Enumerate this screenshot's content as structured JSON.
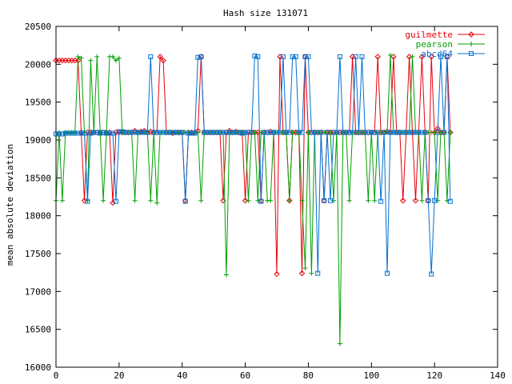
{
  "chart_data": {
    "type": "line",
    "title": "Hash size 131071",
    "xlabel": "",
    "ylabel": "mean absolute deviation",
    "xlim": [
      0,
      140
    ],
    "ylim": [
      16000,
      20500
    ],
    "xticks": [
      0,
      20,
      40,
      60,
      80,
      100,
      120,
      140
    ],
    "yticks": [
      16000,
      16500,
      17000,
      17500,
      18000,
      18500,
      19000,
      19500,
      20000,
      20500
    ],
    "grid": false,
    "legend_position": "top-right",
    "series": [
      {
        "name": "guilmette",
        "color": "#e8000b",
        "marker": "diamond",
        "x": [
          0,
          1,
          2,
          3,
          4,
          5,
          6,
          7,
          8,
          9,
          10,
          11,
          12,
          13,
          14,
          15,
          16,
          17,
          18,
          19,
          20,
          21,
          22,
          23,
          24,
          25,
          26,
          27,
          28,
          29,
          30,
          31,
          32,
          33,
          34,
          35,
          36,
          37,
          38,
          39,
          40,
          41,
          42,
          43,
          44,
          45,
          46,
          47,
          48,
          49,
          50,
          51,
          52,
          53,
          54,
          55,
          56,
          57,
          58,
          59,
          60,
          61,
          62,
          63,
          64,
          65,
          66,
          67,
          68,
          69,
          70,
          71,
          72,
          73,
          74,
          75,
          76,
          77,
          78,
          79,
          80,
          81,
          82,
          83,
          84,
          85,
          86,
          87,
          88,
          89,
          90,
          91,
          92,
          93,
          94,
          95,
          96,
          97,
          98,
          99,
          100,
          101,
          102,
          103,
          104,
          105,
          106,
          107,
          108,
          109,
          110,
          111,
          112,
          113,
          114,
          115,
          116,
          117,
          118,
          119,
          120,
          121,
          122,
          123,
          124,
          125
        ],
        "y": [
          20050,
          20050,
          20050,
          20050,
          20050,
          20050,
          20050,
          20050,
          19100,
          18200,
          19100,
          19100,
          19100,
          19100,
          19100,
          19100,
          19100,
          19100,
          18170,
          19100,
          19100,
          19100,
          19100,
          19100,
          19100,
          19120,
          19100,
          19110,
          19120,
          19100,
          19110,
          19100,
          19100,
          20100,
          20050,
          19100,
          19100,
          19090,
          19100,
          19100,
          19100,
          18200,
          19100,
          19100,
          19100,
          19120,
          20100,
          19100,
          19100,
          19100,
          19100,
          19100,
          19100,
          18200,
          19100,
          19120,
          19100,
          19110,
          19100,
          19100,
          18200,
          19100,
          19100,
          19100,
          19100,
          18200,
          19100,
          19100,
          19110,
          19100,
          17230,
          20100,
          19100,
          19100,
          18200,
          19100,
          19100,
          19100,
          17240,
          20100,
          19100,
          19100,
          19100,
          19100,
          19100,
          18200,
          19100,
          19100,
          19100,
          19100,
          19100,
          19100,
          19100,
          19100,
          20100,
          19100,
          19100,
          19100,
          19100,
          19100,
          19100,
          19100,
          20100,
          19100,
          19100,
          19110,
          19100,
          20100,
          19100,
          19100,
          18200,
          19100,
          20100,
          19100,
          18200,
          19100,
          20100,
          19100,
          18200,
          20100,
          19100,
          19150,
          19100,
          19100,
          20100,
          19100
        ]
      },
      {
        "name": "pearson",
        "color": "#00a000",
        "marker": "plus",
        "x": [
          0,
          1,
          2,
          3,
          4,
          5,
          6,
          7,
          8,
          9,
          10,
          11,
          12,
          13,
          14,
          15,
          16,
          17,
          18,
          19,
          20,
          21,
          22,
          23,
          24,
          25,
          26,
          27,
          28,
          29,
          30,
          31,
          32,
          33,
          34,
          35,
          36,
          37,
          38,
          39,
          40,
          41,
          42,
          43,
          44,
          45,
          46,
          47,
          48,
          49,
          50,
          51,
          52,
          53,
          54,
          55,
          56,
          57,
          58,
          59,
          60,
          61,
          62,
          63,
          64,
          65,
          66,
          67,
          68,
          69,
          70,
          71,
          72,
          73,
          74,
          75,
          76,
          77,
          78,
          79,
          80,
          81,
          82,
          83,
          84,
          85,
          86,
          87,
          88,
          89,
          90,
          91,
          92,
          93,
          94,
          95,
          96,
          97,
          98,
          99,
          100,
          101,
          102,
          103,
          104,
          105,
          106,
          107,
          108,
          109,
          110,
          111,
          112,
          113,
          114,
          115,
          116,
          117,
          118,
          119,
          120,
          121,
          122,
          123,
          124,
          125
        ],
        "y": [
          18200,
          19100,
          18200,
          19100,
          19100,
          19100,
          19100,
          20100,
          20080,
          19100,
          18200,
          20050,
          19100,
          20100,
          19100,
          18200,
          19100,
          20100,
          20100,
          20050,
          20080,
          19100,
          19100,
          19100,
          19100,
          18200,
          19100,
          19100,
          19100,
          19100,
          18200,
          19100,
          18170,
          19100,
          19100,
          19100,
          19100,
          19100,
          19100,
          19090,
          19100,
          19100,
          19100,
          19100,
          19100,
          19100,
          18200,
          19100,
          19100,
          19100,
          19100,
          19100,
          19100,
          19100,
          17220,
          19100,
          19100,
          19100,
          19100,
          19100,
          19100,
          18200,
          19100,
          19100,
          18200,
          19100,
          19100,
          18200,
          18200,
          19100,
          19100,
          19100,
          19100,
          19100,
          18200,
          19100,
          19100,
          19100,
          18200,
          17310,
          19100,
          17240,
          19100,
          19100,
          19100,
          19100,
          19100,
          19100,
          18200,
          19100,
          16310,
          19100,
          19100,
          18200,
          19100,
          19100,
          19100,
          19100,
          19100,
          18200,
          19100,
          18200,
          19100,
          19100,
          19100,
          19100,
          20120,
          19100,
          19100,
          19100,
          19100,
          19100,
          19100,
          20100,
          19100,
          19100,
          18200,
          19100,
          19100,
          19100,
          19100,
          18200,
          19100,
          19100,
          18200,
          19100
        ]
      },
      {
        "name": "abcd64",
        "color": "#0070d0",
        "marker": "square",
        "x": [
          0,
          1,
          2,
          3,
          4,
          5,
          6,
          7,
          8,
          9,
          10,
          11,
          12,
          13,
          14,
          15,
          16,
          17,
          18,
          19,
          20,
          21,
          22,
          23,
          24,
          25,
          26,
          27,
          28,
          29,
          30,
          31,
          32,
          33,
          34,
          35,
          36,
          37,
          38,
          39,
          40,
          41,
          42,
          43,
          44,
          45,
          46,
          47,
          48,
          49,
          50,
          51,
          52,
          53,
          54,
          55,
          56,
          57,
          58,
          59,
          60,
          61,
          62,
          63,
          64,
          65,
          66,
          67,
          68,
          69,
          70,
          71,
          72,
          73,
          74,
          75,
          76,
          77,
          78,
          79,
          80,
          81,
          82,
          83,
          84,
          85,
          86,
          87,
          88,
          89,
          90,
          91,
          92,
          93,
          94,
          95,
          96,
          97,
          98,
          99,
          100,
          101,
          102,
          103,
          104,
          105,
          106,
          107,
          108,
          109,
          110,
          111,
          112,
          113,
          114,
          115,
          116,
          117,
          118,
          119,
          120,
          121,
          122,
          123,
          124,
          125
        ],
        "y": [
          19080,
          19080,
          19080,
          19090,
          19090,
          19090,
          19090,
          19090,
          19090,
          19090,
          18190,
          19090,
          19100,
          19100,
          19090,
          19100,
          19090,
          19090,
          19090,
          18190,
          19110,
          19110,
          19100,
          19100,
          19100,
          19100,
          19100,
          19100,
          19100,
          19100,
          20100,
          19100,
          19100,
          19100,
          19100,
          19100,
          19100,
          19100,
          19100,
          19100,
          19100,
          18190,
          19090,
          19090,
          19090,
          20090,
          20100,
          19100,
          19100,
          19100,
          19100,
          19100,
          19100,
          19100,
          19100,
          19100,
          19100,
          19100,
          19100,
          19090,
          19100,
          19100,
          19100,
          20110,
          20100,
          18190,
          19100,
          19100,
          19100,
          19100,
          19100,
          19100,
          20100,
          19100,
          19100,
          20100,
          20100,
          19100,
          19100,
          20100,
          20100,
          19100,
          19100,
          17240,
          19100,
          18200,
          19100,
          18200,
          19100,
          19100,
          20100,
          19100,
          19100,
          19100,
          19100,
          20100,
          19100,
          20100,
          19100,
          19100,
          19100,
          19100,
          19100,
          18190,
          19100,
          17240,
          19100,
          19100,
          19100,
          19100,
          19100,
          19100,
          19100,
          19100,
          19100,
          19100,
          19100,
          19100,
          18200,
          17230,
          18200,
          19100,
          20100,
          19100,
          20100,
          18190
        ]
      }
    ]
  }
}
